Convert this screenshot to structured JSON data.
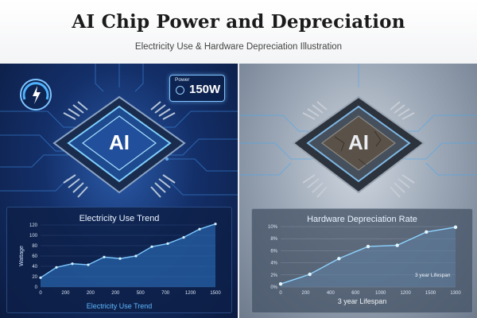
{
  "header": {
    "title": "AI Chip Power and Depreciation",
    "subtitle": "Electricity Use & Hardware Depreciation Illustration"
  },
  "left_panel": {
    "chip_label": "AI",
    "power_badge": {
      "label": "Power",
      "value": "150W"
    },
    "chart_title": "Electricity Use Trend",
    "y_axis_label": "Wattage",
    "bottom_label": "Electricity Use Trend",
    "accent": "#4fb3ff"
  },
  "right_panel": {
    "chip_label": "AI",
    "chart_title": "Hardware Depreciation Rate",
    "annotation": "3 year Lifespan",
    "bottom_label": "3 year Lifespan",
    "accent": "#8fd3ff"
  },
  "chart_data": [
    {
      "type": "area",
      "title": "Electricity Use Trend",
      "xlabel": "Electricity Use Trend",
      "ylabel": "Wattage",
      "x_tick_labels": [
        "0",
        "200",
        "200",
        "200",
        "500",
        "700",
        "1200",
        "1500"
      ],
      "y_tick_labels": [
        "0",
        "20",
        "40",
        "60",
        "80",
        "100",
        "120"
      ],
      "ylim": [
        0,
        120
      ],
      "series": [
        {
          "values": [
            18,
            38,
            45,
            43,
            58,
            55,
            60,
            78,
            84,
            96,
            112,
            122
          ]
        }
      ]
    },
    {
      "type": "line",
      "title": "Hardware Depreciation Rate",
      "xlabel": "3 year Lifespan",
      "x_tick_labels": [
        "0",
        "200",
        "400",
        "600",
        "1000",
        "1200",
        "1500",
        "1300"
      ],
      "y_tick_labels": [
        "0%",
        "2%",
        "4%",
        "6%",
        "8%",
        "10%"
      ],
      "ylim": [
        0,
        10
      ],
      "series": [
        {
          "values": [
            0.5,
            2.1,
            4.7,
            6.7,
            6.9,
            9.1,
            9.9
          ]
        }
      ]
    }
  ]
}
